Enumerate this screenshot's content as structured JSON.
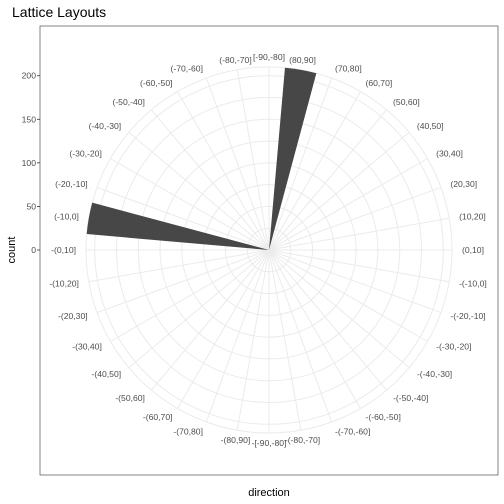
{
  "chart_data": {
    "type": "bar",
    "subtype": "polar-rose",
    "title": "Lattice Layouts",
    "xlabel": "direction",
    "ylabel": "count",
    "ylim": [
      0,
      210
    ],
    "yticks": [
      0,
      50,
      100,
      150,
      200
    ],
    "grid": true,
    "legend": "none",
    "bar_color": "#474747",
    "categories": [
      "[-90,-80]",
      "(80,90]",
      "(70,80]",
      "(60,70]",
      "(50,60]",
      "(40,50]",
      "(30,40]",
      "(20,30]",
      "(10,20]",
      "(0,10]",
      "-(-10,0]",
      "-(-20,-10]",
      "-(-30,-20]",
      "-(-40,-30]",
      "-(-50,-40]",
      "-(-60,-50]",
      "-(-70,-60]",
      "-(-80,-70]",
      "-[-90,-80]",
      "-(80,90]",
      "-(70,80]",
      "-(60,70]",
      "-(50,60]",
      "-(40,50]",
      "-(30,40]",
      "-(20,30]",
      "-(10,20]",
      "-(0,10]",
      "(-10,0]",
      "(-20,-10]",
      "(-30,-20]",
      "(-40,-30]",
      "(-50,-40]",
      "(-60,-50]",
      "(-70,-60]",
      "(-80,-70]"
    ],
    "values": [
      0,
      210,
      0,
      0,
      0,
      0,
      0,
      0,
      0,
      0,
      0,
      0,
      0,
      0,
      0,
      0,
      0,
      0,
      0,
      0,
      0,
      0,
      0,
      0,
      0,
      0,
      0,
      0,
      210,
      0,
      0,
      0,
      0,
      0,
      0,
      0
    ]
  }
}
